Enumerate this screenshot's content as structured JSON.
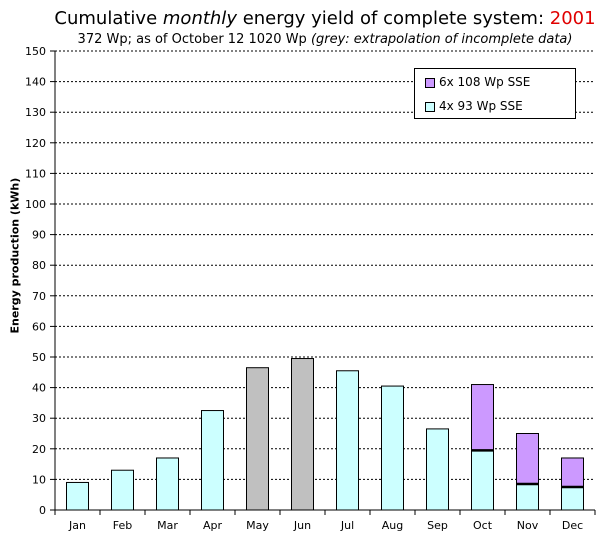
{
  "title": {
    "prefix": "Cumulative ",
    "emphasis": "monthly",
    "middle": " energy yield of complete system: ",
    "year": "2001",
    "year_color": "#e00000"
  },
  "subtitle": {
    "main": "372 Wp; as of October 12 1020 Wp ",
    "note": "(grey: extrapolation of incomplete data)"
  },
  "chart_data": {
    "type": "bar",
    "stacked": true,
    "categories": [
      "Jan",
      "Feb",
      "Mar",
      "Apr",
      "May",
      "Jun",
      "Jul",
      "Aug",
      "Sep",
      "Oct",
      "Nov",
      "Dec"
    ],
    "series": [
      {
        "name": "4x 93 Wp SSE",
        "color": "#ccffff",
        "values": [
          9,
          13,
          17,
          32.5,
          46.5,
          49.5,
          45.5,
          40.5,
          26.5,
          19.5,
          8.5,
          7.5
        ]
      },
      {
        "name": "6x 108 Wp SSE",
        "color": "#cc99ff",
        "values": [
          0,
          0,
          0,
          0,
          0,
          0,
          0,
          0,
          0,
          21.5,
          16.5,
          9.5
        ]
      }
    ],
    "extrapolated_categories": [
      "May",
      "Jun"
    ],
    "extrapolated_color": "#c0c0c0",
    "ylabel": "Energy production (kWh)",
    "ylim": [
      0,
      150
    ],
    "ytick_step": 10,
    "grid": true,
    "legend_position": "top-right"
  }
}
